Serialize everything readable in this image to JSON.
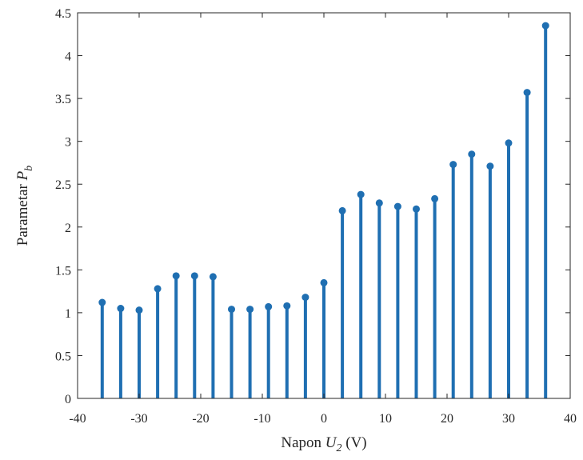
{
  "chart_data": {
    "type": "stem",
    "xlabel": {
      "prefix": "Napon ",
      "var": "U",
      "sub": "2",
      "suffix": " (V)"
    },
    "ylabel": {
      "prefix": "Parametar ",
      "var": "P",
      "sub": "b"
    },
    "xlim": [
      -40,
      40
    ],
    "ylim": [
      0,
      4.5
    ],
    "xticks": [
      "-40",
      "-30",
      "-20",
      "-10",
      "0",
      "10",
      "20",
      "30",
      "40"
    ],
    "yticks": [
      "0",
      "0.5",
      "1",
      "1.5",
      "2",
      "2.5",
      "3",
      "3.5",
      "4",
      "4.5"
    ],
    "grid": false,
    "color": "#1f6fb2",
    "x": [
      -36,
      -33,
      -30,
      -27,
      -24,
      -21,
      -18,
      -15,
      -12,
      -9,
      -6,
      -3,
      0,
      3,
      6,
      9,
      12,
      15,
      18,
      21,
      24,
      27,
      30,
      33,
      36
    ],
    "y": [
      1.12,
      1.05,
      1.03,
      1.28,
      1.43,
      1.43,
      1.42,
      1.04,
      1.04,
      1.07,
      1.08,
      1.18,
      1.35,
      2.19,
      2.38,
      2.28,
      2.24,
      2.21,
      2.33,
      2.73,
      2.85,
      2.71,
      2.98,
      3.57,
      4.35
    ]
  }
}
